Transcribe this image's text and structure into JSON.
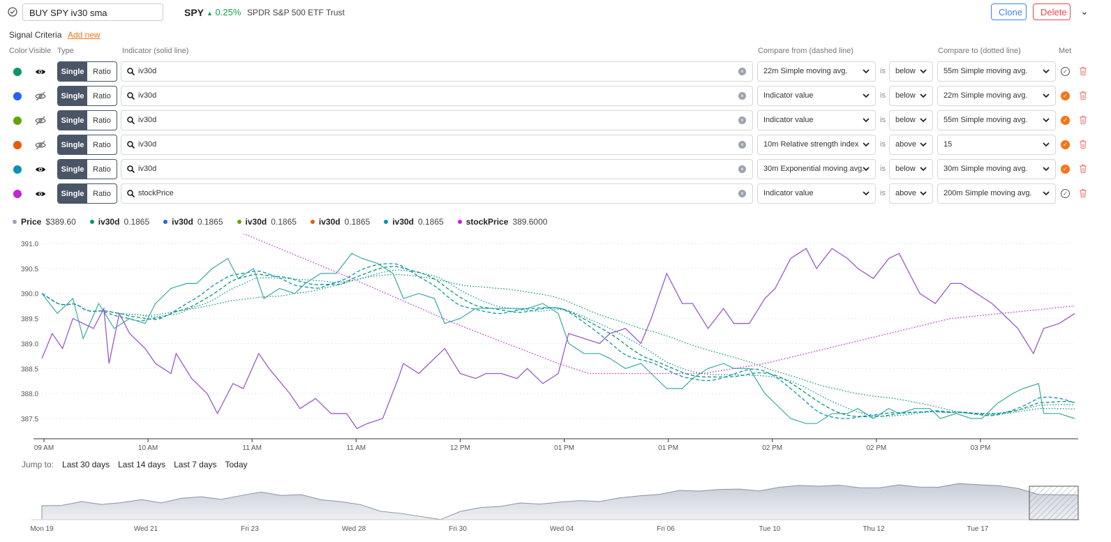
{
  "header": {
    "signal_name": "BUY SPY iv30 sma",
    "ticker": "SPY",
    "change": "0.25%",
    "company": "SPDR S&P 500 ETF Trust",
    "clone": "Clone",
    "delete": "Delete"
  },
  "criteria": {
    "title": "Signal Criteria",
    "add_new": "Add new",
    "headers": {
      "color": "Color",
      "visible": "Visible",
      "type": "Type",
      "indicator": "Indicator (solid line)",
      "compare_from": "Compare from (dashed line)",
      "compare_to": "Compare to (dotted line)",
      "met": "Met"
    },
    "is_label": "is",
    "single": "Single",
    "ratio": "Ratio",
    "rows": [
      {
        "color": "#0e9467",
        "visible": true,
        "indicator": "iv30d",
        "from": "22m Simple moving avg.",
        "op": "below",
        "to": "55m Simple moving avg.",
        "met": false
      },
      {
        "color": "#2563eb",
        "visible": false,
        "indicator": "iv30d",
        "from": "Indicator value",
        "op": "below",
        "to": "22m Simple moving avg.",
        "met": true
      },
      {
        "color": "#65a30d",
        "visible": false,
        "indicator": "iv30d",
        "from": "Indicator value",
        "op": "below",
        "to": "55m Simple moving avg.",
        "met": true
      },
      {
        "color": "#ea580c",
        "visible": false,
        "indicator": "iv30d",
        "from": "10m Relative strength index",
        "op": "above",
        "to": "15",
        "met": true
      },
      {
        "color": "#0891b2",
        "visible": true,
        "indicator": "iv30d",
        "from": "30m Exponential moving avg.",
        "op": "below",
        "to": "30m Simple moving avg.",
        "met": true
      },
      {
        "color": "#c026d3",
        "visible": true,
        "indicator": "stockPrice",
        "from": "Indicator value",
        "op": "above",
        "to": "200m Simple moving avg.",
        "met": false
      }
    ]
  },
  "legend": [
    {
      "name": "Price",
      "value": "$389.60",
      "color": "#94a3b8"
    },
    {
      "name": "iv30d",
      "value": "0.1865",
      "color": "#0e9467"
    },
    {
      "name": "iv30d",
      "value": "0.1865",
      "color": "#2563eb"
    },
    {
      "name": "iv30d",
      "value": "0.1865",
      "color": "#65a30d"
    },
    {
      "name": "iv30d",
      "value": "0.1865",
      "color": "#ea580c"
    },
    {
      "name": "iv30d",
      "value": "0.1865",
      "color": "#0891b2"
    },
    {
      "name": "stockPrice",
      "value": "389.6000",
      "color": "#c026d3"
    }
  ],
  "jump": {
    "label": "Jump to:",
    "options": [
      "Last 30 days",
      "Last 14 days",
      "Last 7 days",
      "Today"
    ]
  },
  "chart_data": {
    "type": "line",
    "ylim": [
      387.2,
      391.2
    ],
    "yticks": [
      "391.0",
      "390.5",
      "390.0",
      "389.5",
      "389.0",
      "388.5",
      "388.0",
      "387.5"
    ],
    "xticks": [
      "09 AM",
      "10 AM",
      "11 AM",
      "11 AM",
      "12 PM",
      "01 PM",
      "01 PM",
      "02 PM",
      "02 PM",
      "03 PM"
    ],
    "x_range": [
      0,
      100
    ],
    "price": [
      [
        0,
        388.7
      ],
      [
        1,
        389.2
      ],
      [
        2,
        388.9
      ],
      [
        3,
        389.5
      ],
      [
        5,
        389.3
      ],
      [
        6,
        389.7
      ],
      [
        6.5,
        388.6
      ],
      [
        7.5,
        389.6
      ],
      [
        8.5,
        389.2
      ],
      [
        10,
        388.9
      ],
      [
        11,
        388.6
      ],
      [
        12.5,
        388.4
      ],
      [
        13,
        388.8
      ],
      [
        14.5,
        388.3
      ],
      [
        16,
        388.0
      ],
      [
        17,
        387.6
      ],
      [
        18.5,
        388.2
      ],
      [
        19.5,
        388.1
      ],
      [
        21,
        388.8
      ],
      [
        22,
        388.5
      ],
      [
        24,
        388.0
      ],
      [
        25,
        387.7
      ],
      [
        26.5,
        387.9
      ],
      [
        28,
        387.6
      ],
      [
        29.5,
        387.6
      ],
      [
        30.5,
        387.3
      ],
      [
        31.5,
        387.4
      ],
      [
        33,
        387.5
      ],
      [
        34.5,
        388.3
      ],
      [
        35,
        388.6
      ],
      [
        36.5,
        388.4
      ],
      [
        38,
        388.7
      ],
      [
        39,
        388.9
      ],
      [
        40.5,
        388.4
      ],
      [
        42,
        388.3
      ],
      [
        43,
        388.4
      ],
      [
        44.5,
        388.4
      ],
      [
        46,
        388.3
      ],
      [
        47,
        388.5
      ],
      [
        48.5,
        388.2
      ],
      [
        50,
        388.4
      ],
      [
        51,
        389.2
      ],
      [
        52.5,
        389.1
      ],
      [
        54,
        389.0
      ],
      [
        55,
        389.2
      ],
      [
        56.5,
        389.3
      ],
      [
        58,
        389.0
      ],
      [
        59,
        389.5
      ],
      [
        60.5,
        390.4
      ],
      [
        62,
        389.8
      ],
      [
        63,
        389.8
      ],
      [
        64.5,
        389.3
      ],
      [
        66,
        389.7
      ],
      [
        67,
        389.4
      ],
      [
        68.5,
        389.4
      ],
      [
        70,
        389.9
      ],
      [
        71,
        390.1
      ],
      [
        72.5,
        390.7
      ],
      [
        74,
        390.9
      ],
      [
        75,
        390.5
      ],
      [
        76.5,
        390.9
      ],
      [
        78,
        390.7
      ],
      [
        79,
        390.5
      ],
      [
        80.5,
        390.3
      ],
      [
        82,
        390.7
      ],
      [
        83,
        390.8
      ],
      [
        84,
        390.4
      ],
      [
        85,
        390.0
      ],
      [
        86.5,
        389.8
      ],
      [
        88,
        390.2
      ],
      [
        89,
        390.2
      ],
      [
        90.5,
        390.0
      ],
      [
        92,
        389.8
      ],
      [
        93,
        389.6
      ],
      [
        94.5,
        389.3
      ],
      [
        96,
        388.8
      ],
      [
        97,
        389.3
      ],
      [
        98.5,
        389.4
      ],
      [
        100,
        389.6
      ]
    ],
    "iv30d": [
      [
        0,
        390.0
      ],
      [
        1.5,
        389.6
      ],
      [
        3,
        389.9
      ],
      [
        4,
        389.1
      ],
      [
        5.5,
        389.8
      ],
      [
        7,
        389.3
      ],
      [
        8.5,
        389.5
      ],
      [
        10,
        389.4
      ],
      [
        11,
        389.8
      ],
      [
        12.5,
        390.1
      ],
      [
        14,
        390.2
      ],
      [
        15,
        390.2
      ],
      [
        16.5,
        390.5
      ],
      [
        18,
        390.7
      ],
      [
        19,
        390.3
      ],
      [
        20.5,
        390.5
      ],
      [
        21.5,
        389.9
      ],
      [
        23,
        390.1
      ],
      [
        24.5,
        390.0
      ],
      [
        25.5,
        390.2
      ],
      [
        27,
        390.4
      ],
      [
        28.5,
        390.4
      ],
      [
        30,
        390.8
      ],
      [
        31,
        390.7
      ],
      [
        32.5,
        390.6
      ],
      [
        34,
        390.4
      ],
      [
        35,
        389.9
      ],
      [
        36.5,
        390.0
      ],
      [
        38,
        389.9
      ],
      [
        39,
        389.4
      ],
      [
        40.5,
        389.5
      ],
      [
        42,
        389.7
      ],
      [
        43,
        389.7
      ],
      [
        44.5,
        389.7
      ],
      [
        46,
        389.7
      ],
      [
        47,
        389.7
      ],
      [
        48.5,
        389.8
      ],
      [
        50,
        389.6
      ],
      [
        51,
        389.0
      ],
      [
        52.5,
        388.8
      ],
      [
        54,
        388.8
      ],
      [
        55,
        388.7
      ],
      [
        56.5,
        388.5
      ],
      [
        58,
        388.6
      ],
      [
        59,
        388.4
      ],
      [
        60.5,
        388.1
      ],
      [
        62,
        388.1
      ],
      [
        63,
        388.3
      ],
      [
        64.5,
        388.5
      ],
      [
        66,
        388.6
      ],
      [
        67,
        388.5
      ],
      [
        68.5,
        388.5
      ],
      [
        70,
        388.0
      ],
      [
        71,
        387.8
      ],
      [
        72.5,
        387.5
      ],
      [
        74,
        387.4
      ],
      [
        75,
        387.4
      ],
      [
        76.5,
        387.6
      ],
      [
        78,
        387.6
      ],
      [
        79,
        387.7
      ],
      [
        80.5,
        387.5
      ],
      [
        82,
        387.7
      ],
      [
        83,
        387.6
      ],
      [
        84.5,
        387.7
      ],
      [
        86,
        387.7
      ],
      [
        87,
        387.5
      ],
      [
        88.5,
        387.6
      ],
      [
        90,
        387.5
      ],
      [
        91,
        387.5
      ],
      [
        92.5,
        387.8
      ],
      [
        94,
        388.0
      ],
      [
        95,
        388.1
      ],
      [
        96.5,
        388.2
      ],
      [
        97,
        387.6
      ],
      [
        98.5,
        387.6
      ],
      [
        100,
        387.5
      ]
    ],
    "stockPrice_sma200": [
      [
        19.5,
        391.2
      ],
      [
        30,
        390.3
      ],
      [
        40,
        389.4
      ],
      [
        50,
        388.6
      ],
      [
        53,
        388.4
      ],
      [
        64,
        388.4
      ],
      [
        70,
        388.6
      ],
      [
        80,
        389.1
      ],
      [
        88,
        389.5
      ],
      [
        100,
        389.75
      ]
    ]
  },
  "navigator": {
    "labels": [
      "Mon 19",
      "Wed 21",
      "Fri 23",
      "Wed 28",
      "Fri 30",
      "Wed 04",
      "Fri 06",
      "Tue 10",
      "Thu 12",
      "Tue 17"
    ]
  }
}
